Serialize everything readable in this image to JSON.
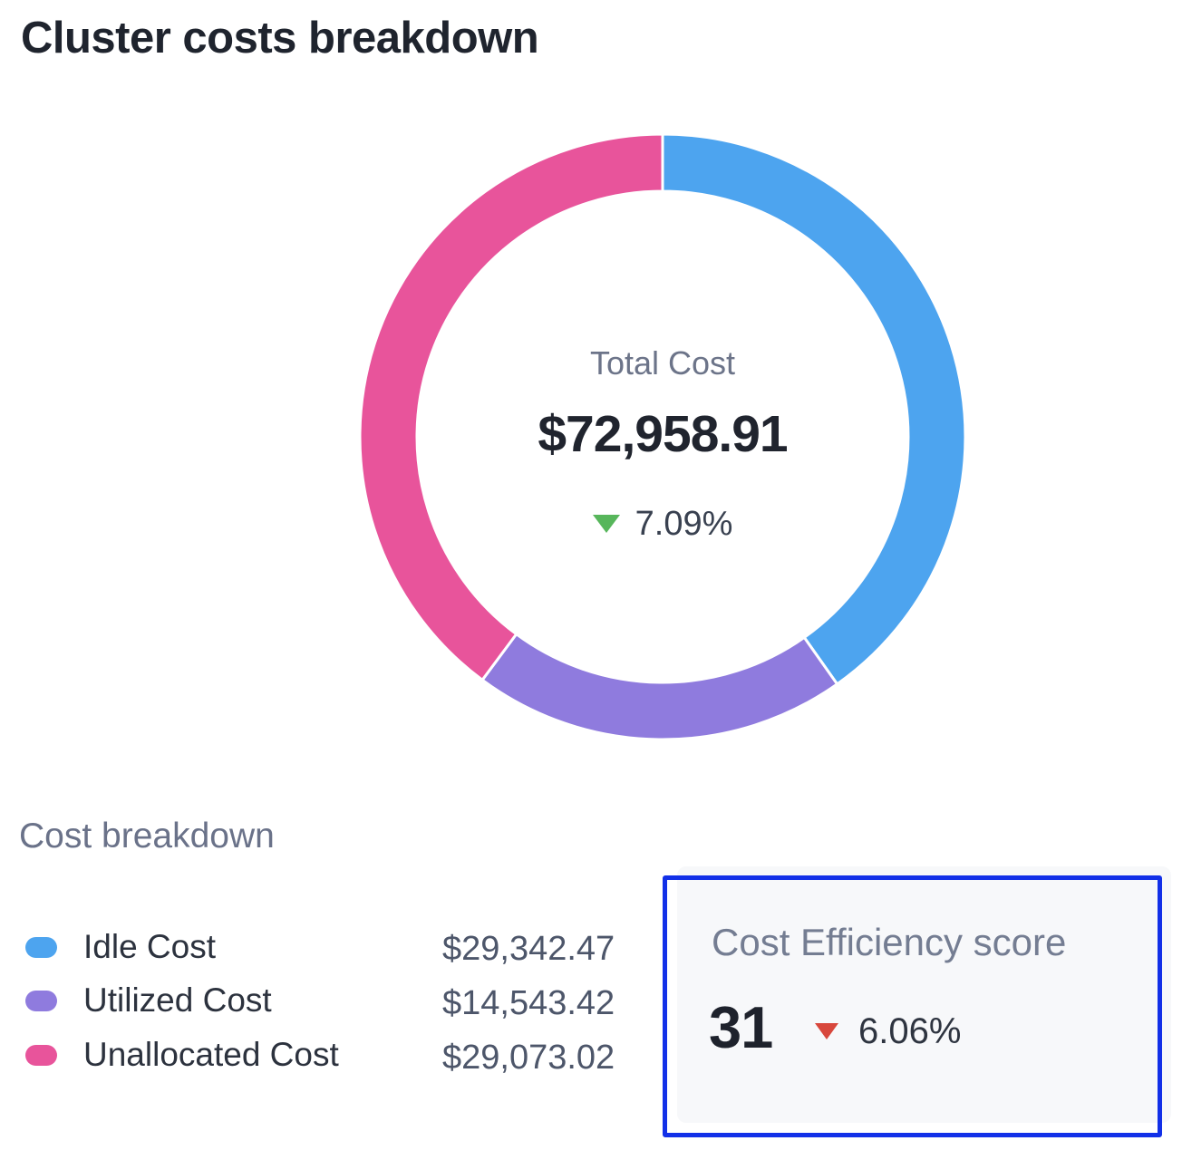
{
  "page": {
    "title": "Cluster costs breakdown",
    "background_color": "#ffffff"
  },
  "donut": {
    "center_label": "Total Cost",
    "center_value": "$72,958.91",
    "delta": {
      "value": "7.09%",
      "direction": "down",
      "arrow_color": "#57b65b"
    }
  },
  "breakdown": {
    "heading": "Cost breakdown",
    "items": [
      {
        "label": "Idle Cost",
        "value": "$29,342.47",
        "color": "#4da4ef"
      },
      {
        "label": "Utilized Cost",
        "value": "$14,543.42",
        "color": "#8f7bde"
      },
      {
        "label": "Unallocated Cost",
        "value": "$29,073.02",
        "color": "#e8549b"
      }
    ]
  },
  "efficiency": {
    "title": "Cost Efficiency score",
    "score": "31",
    "delta": {
      "value": "6.06%",
      "direction": "down",
      "arrow_color": "#d8473c"
    },
    "highlight_border_color": "#1230e8",
    "card_background": "#f7f8fa"
  },
  "chart_data": {
    "type": "pie",
    "subtype": "donut",
    "title": "Cluster costs breakdown",
    "center_label": "Total Cost",
    "total": 72958.91,
    "total_display": "$72,958.91",
    "change_percent_display": "7.09%",
    "change_direction": "down",
    "segments": [
      {
        "label": "Idle Cost",
        "value": 29342.47,
        "display": "$29,342.47",
        "color": "#4da4ef"
      },
      {
        "label": "Utilized Cost",
        "value": 14543.42,
        "display": "$14,543.42",
        "color": "#8f7bde"
      },
      {
        "label": "Unallocated Cost",
        "value": 29073.02,
        "display": "$29,073.02",
        "color": "#e8549b"
      }
    ],
    "start_angle_deg_from_top": 0,
    "direction": "clockwise",
    "inner_radius_ratio": 0.81,
    "segment_gap_stroke": "#ffffff",
    "legend_position": "bottom-left"
  }
}
